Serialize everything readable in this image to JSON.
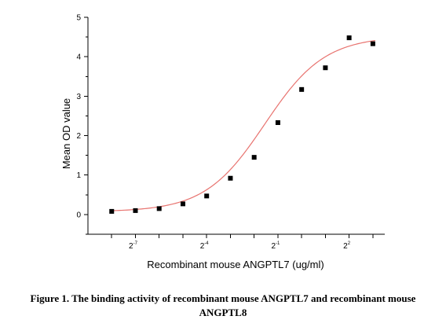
{
  "chart_data": {
    "type": "scatter",
    "xlabel": "Recombinant mouse ANGPTL7 (ug/ml)",
    "ylabel": "Mean OD value",
    "x_scale": "log2",
    "x_tick_labels": [
      {
        "base": "2",
        "exp": "-7",
        "value": -7
      },
      {
        "base": "2",
        "exp": "-4",
        "value": -4
      },
      {
        "base": "2",
        "exp": "-1",
        "value": -1
      },
      {
        "base": "2",
        "exp": "2",
        "value": 2
      }
    ],
    "x_ticks_log2": [
      -8,
      -7,
      -6,
      -5,
      -4,
      -3,
      -2,
      -1,
      0,
      1,
      2,
      3
    ],
    "xlim_log2": [
      -9,
      3.5
    ],
    "ylim": [
      -0.5,
      5
    ],
    "y_ticks_major": [
      0,
      1,
      2,
      3,
      4,
      5
    ],
    "y_ticks_minor": [
      -0.5,
      0.5,
      1.5,
      2.5,
      3.5,
      4.5
    ],
    "grid": false,
    "legend": "none",
    "points_x_log2": [
      -8,
      -7,
      -6,
      -5,
      -4,
      -3,
      -2,
      -1,
      0,
      1,
      2,
      3
    ],
    "points_y": [
      0.08,
      0.1,
      0.15,
      0.27,
      0.47,
      0.92,
      1.45,
      2.33,
      3.17,
      3.72,
      4.48,
      4.35
    ],
    "points_end_y": 4.33,
    "fit_curve": {
      "model": "4PL",
      "bottom": 0.07,
      "top": 4.52,
      "logEC50_log2": -1.55,
      "hill_slope_log2": 0.52,
      "x_range_log2": [
        -8,
        3.1
      ]
    },
    "colors": {
      "points": "#000000",
      "curve": "#e8736f",
      "axes": "#000000"
    }
  },
  "caption": {
    "line1": "Figure 1. The binding activity of recombinant mouse ANGPTL7 and recombinant mouse",
    "line2": "ANGPTL8"
  }
}
